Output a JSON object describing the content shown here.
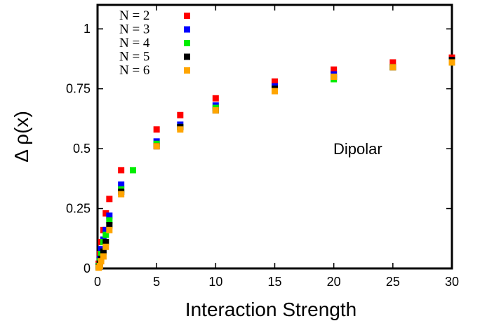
{
  "chart_data": {
    "type": "scatter",
    "xlabel": "Interaction Strength",
    "ylabel": "Δ ρ(x)",
    "annotation": "Dipolar",
    "xlim": [
      0,
      30
    ],
    "ylim": [
      0,
      1.1
    ],
    "x_ticks": [
      0,
      5,
      10,
      15,
      20,
      25,
      30
    ],
    "x_tick_labels": [
      "0",
      "5",
      "10",
      "15",
      "20",
      "25",
      "30"
    ],
    "y_ticks": [
      0,
      0.25,
      0.5,
      0.75,
      1
    ],
    "y_tick_labels": [
      "0",
      "0.25",
      "0.5",
      "0.75",
      "1"
    ],
    "grid": false,
    "legend_position": "top-left",
    "series": [
      {
        "name": "N = 2",
        "color": "#ff0000",
        "points": [
          [
            0.1,
            0.02
          ],
          [
            0.2,
            0.06
          ],
          [
            0.3,
            0.11
          ],
          [
            0.5,
            0.16
          ],
          [
            0.7,
            0.23
          ],
          [
            1,
            0.29
          ],
          [
            2,
            0.41
          ],
          [
            5,
            0.58
          ],
          [
            7,
            0.64
          ],
          [
            10,
            0.71
          ],
          [
            15,
            0.78
          ],
          [
            20,
            0.83
          ],
          [
            25,
            0.86
          ],
          [
            30,
            0.88
          ]
        ]
      },
      {
        "name": "N = 3",
        "color": "#0000ff",
        "points": [
          [
            0.1,
            0.01
          ],
          [
            0.2,
            0.04
          ],
          [
            0.3,
            0.08
          ],
          [
            0.5,
            0.12
          ],
          [
            0.7,
            0.16
          ],
          [
            1,
            0.22
          ],
          [
            2,
            0.35
          ],
          [
            5,
            0.53
          ],
          [
            7,
            0.6
          ],
          [
            10,
            0.68
          ],
          [
            15,
            0.76
          ],
          [
            20,
            0.81
          ],
          [
            25,
            0.84
          ],
          [
            30,
            0.87
          ]
        ]
      },
      {
        "name": "N = 4",
        "color": "#00ee00",
        "points": [
          [
            0.1,
            0.01
          ],
          [
            0.2,
            0.03
          ],
          [
            0.3,
            0.06
          ],
          [
            0.5,
            0.11
          ],
          [
            0.7,
            0.14
          ],
          [
            1,
            0.2
          ],
          [
            2,
            0.33
          ],
          [
            3,
            0.41
          ],
          [
            5,
            0.52
          ],
          [
            7,
            0.59
          ],
          [
            10,
            0.67
          ],
          [
            15,
            0.75
          ],
          [
            20,
            0.79
          ],
          [
            25,
            0.84
          ],
          [
            30,
            0.86
          ]
        ]
      },
      {
        "name": "N = 5",
        "color": "#000000",
        "points": [
          [
            0.1,
            0.005
          ],
          [
            0.2,
            0.02
          ],
          [
            0.3,
            0.04
          ],
          [
            0.5,
            0.07
          ],
          [
            0.7,
            0.11
          ],
          [
            1,
            0.18
          ],
          [
            2,
            0.32
          ],
          [
            5,
            0.51
          ],
          [
            7,
            0.59
          ],
          [
            10,
            0.66
          ],
          [
            15,
            0.75
          ],
          [
            20,
            0.8
          ],
          [
            25,
            0.84
          ],
          [
            30,
            0.87
          ]
        ]
      },
      {
        "name": "N = 6",
        "color": "#ffa500",
        "points": [
          [
            0.1,
            0.003
          ],
          [
            0.2,
            0.01
          ],
          [
            0.3,
            0.03
          ],
          [
            0.5,
            0.05
          ],
          [
            0.7,
            0.09
          ],
          [
            1,
            0.16
          ],
          [
            2,
            0.31
          ],
          [
            5,
            0.51
          ],
          [
            7,
            0.58
          ],
          [
            10,
            0.66
          ],
          [
            15,
            0.74
          ],
          [
            20,
            0.8
          ],
          [
            25,
            0.84
          ],
          [
            30,
            0.86
          ]
        ]
      }
    ]
  }
}
